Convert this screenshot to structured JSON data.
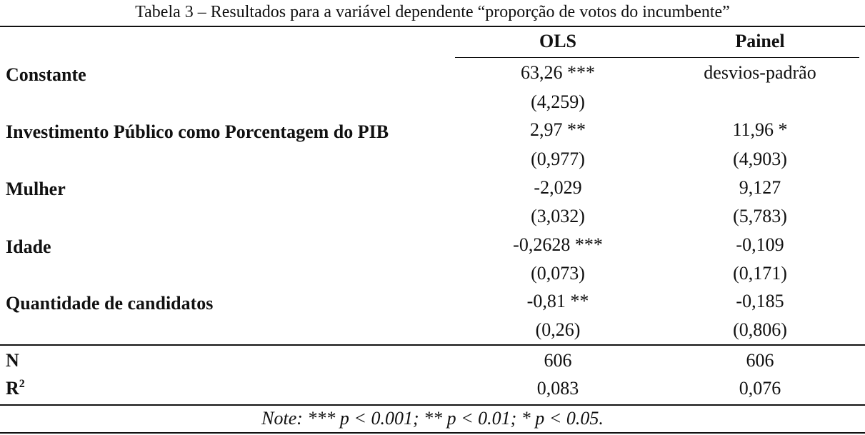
{
  "caption": "Tabela 3 – Resultados para a variável dependente “proporção de votos do incumbente”",
  "columns": {
    "ols": "OLS",
    "painel": "Painel"
  },
  "rows": [
    {
      "label": "Constante",
      "ols": "63,26 ***",
      "painel": "desvios-padrão",
      "ols_se": "(4,259)",
      "painel_se": ""
    },
    {
      "label": "Investimento Público como Porcentagem do PIB",
      "ols": "2,97 **",
      "painel": "11,96 *",
      "ols_se": "(0,977)",
      "painel_se": "(4,903)"
    },
    {
      "label": "Mulher",
      "ols": "-2,029",
      "painel": "9,127",
      "ols_se": "(3,032)",
      "painel_se": "(5,783)"
    },
    {
      "label": "Idade",
      "ols": "-0,2628 ***",
      "painel": "-0,109",
      "ols_se": "(0,073)",
      "painel_se": "(0,171)"
    },
    {
      "label": "Quantidade de candidatos",
      "ols": "-0,81 **",
      "painel": "-0,185",
      "ols_se": "(0,26)",
      "painel_se": "(0,806)"
    }
  ],
  "stats": [
    {
      "label": "N",
      "ols": "606",
      "painel": "606"
    },
    {
      "label": "R",
      "label_sup": "2",
      "ols": "0,083",
      "painel": "0,076"
    }
  ],
  "note": "Note: *** p < 0.001; ** p < 0.01; * p < 0.05."
}
